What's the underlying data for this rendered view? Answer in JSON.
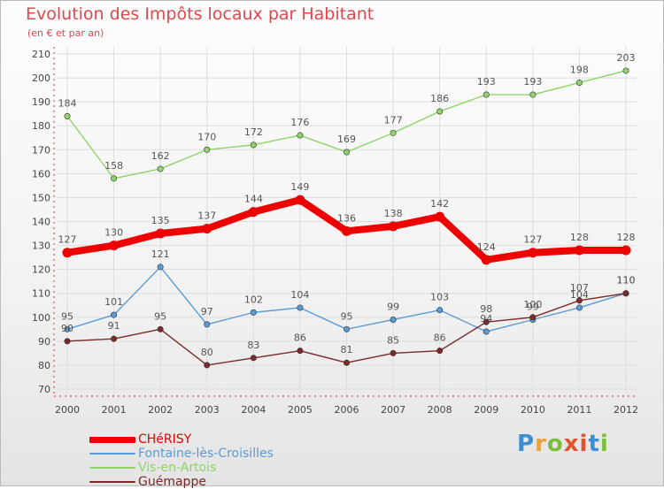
{
  "title": "Evolution des Impôts locaux par Habitant",
  "subtitle": "(en € et par an)",
  "logo": {
    "text": "Proxiti",
    "letter_colors": [
      "#3a8fd6",
      "#e9a23b",
      "#7bbf3a",
      "#e2522f",
      "#e2522f",
      "#3a8fd6",
      "#7bbf3a"
    ]
  },
  "chart_data": {
    "type": "line",
    "x": [
      "2000",
      "2001",
      "2002",
      "2003",
      "2004",
      "2005",
      "2006",
      "2007",
      "2008",
      "2009",
      "2010",
      "2011",
      "2012"
    ],
    "ylim": [
      70,
      210
    ],
    "yticks": [
      70,
      80,
      90,
      100,
      110,
      120,
      130,
      140,
      150,
      160,
      170,
      180,
      190,
      200,
      210
    ],
    "grid": true,
    "legend_position": "bottom-left",
    "series": [
      {
        "name": "CHéRISY",
        "color": "#ee0000",
        "emphasis": true,
        "values": [
          127,
          130,
          135,
          137,
          144,
          149,
          136,
          138,
          142,
          124,
          127,
          128,
          128
        ]
      },
      {
        "name": "Fontaine-lès-Croisilles",
        "color": "#5b9bd5",
        "emphasis": false,
        "values": [
          95,
          101,
          121,
          97,
          102,
          104,
          95,
          99,
          103,
          94,
          99,
          104,
          110
        ]
      },
      {
        "name": "Vis-en-Artois",
        "color": "#8fd36a",
        "emphasis": false,
        "values": [
          184,
          158,
          162,
          170,
          172,
          176,
          169,
          177,
          186,
          193,
          193,
          198,
          203
        ]
      },
      {
        "name": "Guémappe",
        "color": "#7a2a2a",
        "emphasis": false,
        "values": [
          90,
          91,
          95,
          80,
          83,
          86,
          81,
          85,
          86,
          98,
          100,
          107,
          110
        ]
      }
    ]
  }
}
